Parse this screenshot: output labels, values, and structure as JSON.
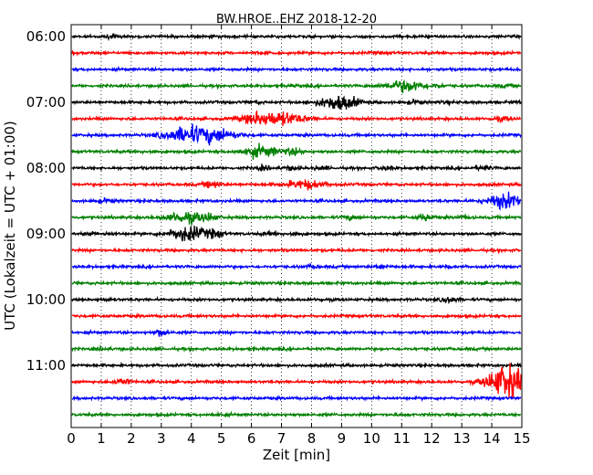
{
  "chart_data": {
    "type": "line",
    "title": "BW.HROE..EHZ 2018-12-20",
    "xlabel": "Zeit  [min]",
    "ylabel": "UTC (Lokalzeit = UTC + 01:00)",
    "xlim": [
      0,
      15
    ],
    "x_ticks": [
      "0",
      "1",
      "2",
      "3",
      "4",
      "5",
      "6",
      "7",
      "8",
      "9",
      "10",
      "11",
      "12",
      "13",
      "14",
      "15"
    ],
    "y_tick_labels": [
      "06:00",
      "07:00",
      "08:00",
      "09:00",
      "10:00",
      "11:00"
    ],
    "grid": true,
    "colors": [
      "#000000",
      "#ff0000",
      "#0000ff",
      "#008000"
    ],
    "traces": [
      {
        "start": "06:00",
        "events": [
          [
            1.3,
            0.8
          ]
        ]
      },
      {
        "start": "06:15",
        "events": [
          [
            6.4,
            0.6
          ],
          [
            10.4,
            0.4
          ]
        ]
      },
      {
        "start": "06:30",
        "events": []
      },
      {
        "start": "06:45",
        "events": [
          [
            11.1,
            4.5
          ],
          [
            12.2,
            1.0
          ],
          [
            14.5,
            0.8
          ],
          [
            7.4,
            0.6
          ]
        ]
      },
      {
        "start": "07:00",
        "events": [
          [
            6.1,
            0.8
          ],
          [
            8.9,
            6.0
          ],
          [
            11.4,
            1.5
          ],
          [
            12.5,
            0.8
          ],
          [
            14.9,
            0.6
          ]
        ]
      },
      {
        "start": "07:15",
        "events": [
          [
            6.3,
            5.0
          ],
          [
            7.2,
            4.0
          ],
          [
            14.3,
            1.5
          ]
        ]
      },
      {
        "start": "07:30",
        "events": [
          [
            3.6,
            3.5
          ],
          [
            4.1,
            4.0
          ],
          [
            4.9,
            4.5
          ]
        ]
      },
      {
        "start": "07:45",
        "events": [
          [
            6.3,
            4.5
          ],
          [
            7.4,
            2.5
          ],
          [
            2.6,
            0.6
          ]
        ]
      },
      {
        "start": "08:00",
        "events": [
          [
            6.4,
            1.5
          ],
          [
            7.3,
            1.2
          ],
          [
            8.3,
            1.0
          ],
          [
            10.5,
            1.2
          ],
          [
            13.7,
            1.5
          ]
        ]
      },
      {
        "start": "08:15",
        "events": [
          [
            4.7,
            3.0
          ],
          [
            7.8,
            3.5
          ]
        ]
      },
      {
        "start": "08:30",
        "events": [
          [
            1.1,
            1.5
          ],
          [
            14.5,
            6.0
          ]
        ]
      },
      {
        "start": "08:45",
        "events": [
          [
            3.8,
            4.5
          ],
          [
            4.6,
            2.5
          ],
          [
            9.3,
            1.5
          ],
          [
            11.8,
            2.5
          ],
          [
            13.1,
            0.8
          ]
        ]
      },
      {
        "start": "09:00",
        "events": [
          [
            0.6,
            1.0
          ],
          [
            1.3,
            0.8
          ],
          [
            3.9,
            6.0
          ],
          [
            4.8,
            2.5
          ],
          [
            6.6,
            0.8
          ],
          [
            7.4,
            0.8
          ]
        ]
      },
      {
        "start": "09:15",
        "events": []
      },
      {
        "start": "09:30",
        "events": [
          [
            8.0,
            0.8
          ],
          [
            10.3,
            1.0
          ],
          [
            12.5,
            0.8
          ]
        ]
      },
      {
        "start": "09:45",
        "events": []
      },
      {
        "start": "10:00",
        "events": [
          [
            1.2,
            0.6
          ],
          [
            12.6,
            2.5
          ],
          [
            8.3,
            0.6
          ]
        ]
      },
      {
        "start": "10:15",
        "events": []
      },
      {
        "start": "10:30",
        "events": [
          [
            3.0,
            2.5
          ]
        ]
      },
      {
        "start": "10:45",
        "events": [
          [
            1.0,
            0.8
          ]
        ]
      },
      {
        "start": "11:00",
        "events": []
      },
      {
        "start": "11:15",
        "events": [
          [
            1.7,
            2.5
          ],
          [
            14.5,
            14.0
          ]
        ]
      },
      {
        "start": "11:30",
        "events": []
      },
      {
        "start": "11:45",
        "events": [
          [
            4.9,
            1.0
          ],
          [
            10.9,
            0.6
          ]
        ]
      }
    ]
  }
}
